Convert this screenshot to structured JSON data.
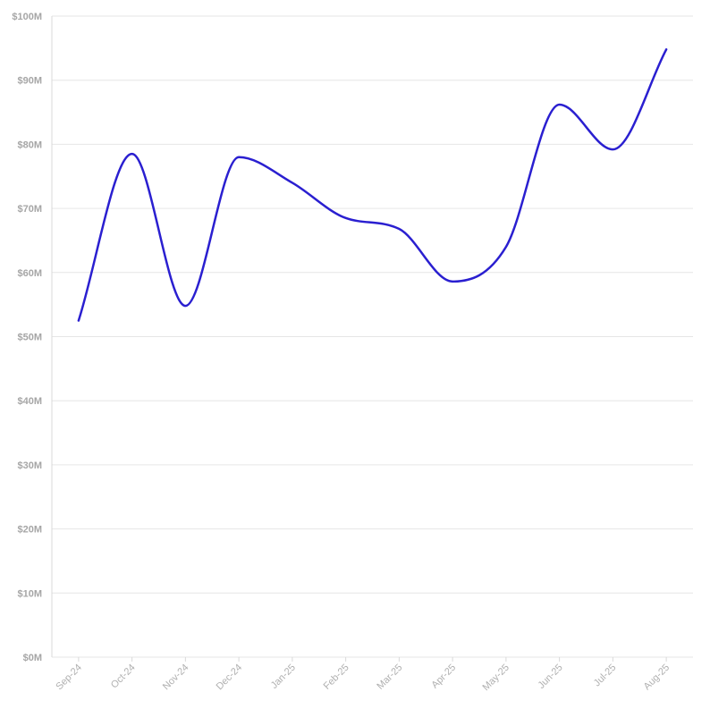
{
  "colors": {
    "series": "#2a1fd0",
    "grid": "#e6e6e6",
    "tick_text": "#a6a6a6"
  },
  "chart_data": {
    "type": "line",
    "title": "",
    "xlabel": "",
    "ylabel": "",
    "x": [
      "Sep-24",
      "Oct-24",
      "Nov-24",
      "Dec-24",
      "Jan-25",
      "Feb-25",
      "Mar-25",
      "Apr-25",
      "May-25",
      "Jun-25",
      "Jul-25",
      "Aug-25"
    ],
    "series": [
      {
        "values": [
          52.5,
          78.5,
          54.8,
          78.0,
          74.0,
          68.5,
          66.8,
          58.6,
          64.0,
          86.2,
          79.2,
          94.8
        ]
      }
    ],
    "ylim": [
      0,
      100
    ],
    "yticks": [
      0,
      10,
      20,
      30,
      40,
      50,
      60,
      70,
      80,
      90,
      100
    ],
    "ytick_labels": [
      "$0M",
      "$10M",
      "$20M",
      "$30M",
      "$40M",
      "$50M",
      "$60M",
      "$70M",
      "$80M",
      "$90M",
      "$100M"
    ],
    "smooth": true,
    "grid": true,
    "legend": "none"
  }
}
